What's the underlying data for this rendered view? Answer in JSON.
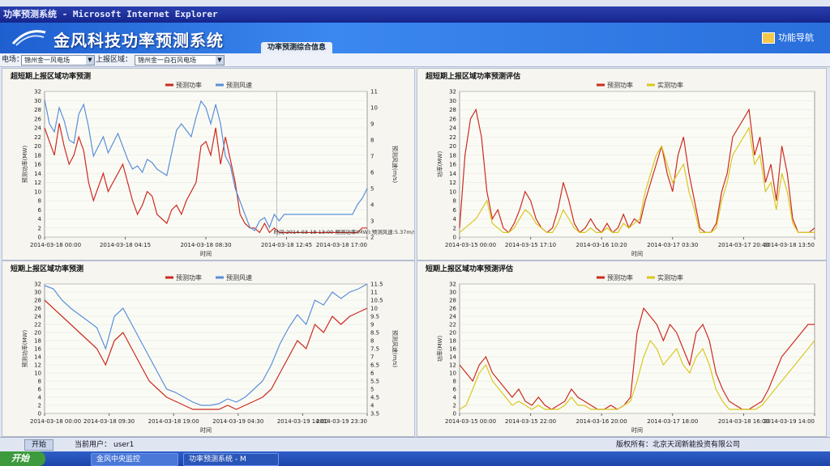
{
  "window": {
    "title": "功率预测系统 - Microsoft Internet Explorer"
  },
  "header": {
    "app_title": "金风科技功率预测系统",
    "active_tab": "功率预测综合信息",
    "nav_button": "功能导航"
  },
  "filters": {
    "farm_label": "电场：",
    "farm_value": "锦州金一风电场",
    "area_label": "上报区域：",
    "area_value": "锦州金一白石风电场"
  },
  "colors": {
    "predicted_power": "#cc2a1e",
    "predicted_wind": "#5a8fd8",
    "actual_power": "#d8c820"
  },
  "status": {
    "start_label": "开始",
    "user_label": "当前用户：",
    "user_value": "user1",
    "copyright": "版权所有：北京天润新能投资有限公司"
  },
  "taskbar": {
    "start": "开始",
    "tasks": [
      "金风中央监控",
      "功率预测系统 - M"
    ]
  },
  "chart_data": [
    {
      "type": "line",
      "title": "超短期上报区域功率预测",
      "xlabel": "时间",
      "ylabel": "预测功率(MW)",
      "y2label": "预测风速(m/s)",
      "x_ticks": [
        "2014-03-18 00:00",
        "2014-03-18 04:15",
        "2014-03-18 08:30",
        "2014-03-18 12:45",
        "2014-03-18 17:00"
      ],
      "ylim": [
        0,
        32
      ],
      "y2lim": [
        2,
        11
      ],
      "y_ticks": [
        0,
        2,
        4,
        6,
        8,
        10,
        12,
        14,
        16,
        18,
        20,
        22,
        24,
        26,
        28,
        30,
        32
      ],
      "y2_ticks": [
        2,
        3,
        4,
        5,
        6,
        7,
        8,
        9,
        10,
        11
      ],
      "legend": [
        "预测功率",
        "预测风速"
      ],
      "tooltip": "时间:2014-03-18 13:00 预测功率(MW):预测风速:5.37m/s",
      "series": [
        {
          "name": "预测功率",
          "axis": "left",
          "values": [
            24,
            21,
            18,
            25,
            20,
            16,
            18,
            22,
            19,
            12,
            8,
            11,
            14,
            10,
            12,
            14,
            16,
            12,
            8,
            5,
            7,
            10,
            9,
            5,
            4,
            3,
            6,
            7,
            5,
            8,
            10,
            12,
            20,
            21,
            18,
            24,
            16,
            22,
            17,
            12,
            5,
            3,
            2,
            2,
            1,
            3,
            1,
            2,
            1,
            1,
            1,
            1,
            1,
            1,
            1,
            1,
            1,
            1,
            1,
            1,
            1,
            1,
            1,
            1,
            1,
            2,
            2
          ]
        },
        {
          "name": "预测风速",
          "axis": "right",
          "values": [
            10.5,
            9.0,
            8.5,
            10.0,
            9.2,
            8.0,
            7.8,
            9.6,
            10.2,
            8.8,
            7.0,
            7.6,
            8.2,
            7.2,
            7.8,
            8.4,
            7.6,
            6.8,
            6.2,
            6.4,
            6.0,
            6.8,
            6.6,
            6.2,
            6.0,
            5.8,
            7.2,
            8.6,
            9.0,
            8.6,
            8.2,
            9.4,
            10.4,
            10.0,
            9.0,
            10.2,
            9.0,
            7.0,
            6.4,
            5.0,
            4.2,
            3.4,
            2.6,
            2.4,
            3.0,
            3.2,
            2.6,
            3.4,
            3.0,
            3.4,
            3.4,
            3.4,
            3.4,
            3.4,
            3.4,
            3.4,
            3.4,
            3.4,
            3.4,
            3.4,
            3.4,
            3.4,
            3.4,
            3.4,
            4.0,
            4.4,
            5.0
          ]
        }
      ]
    },
    {
      "type": "line",
      "title": "超短期上报区域功率预测评估",
      "xlabel": "时间",
      "ylabel": "功率(MW)",
      "x_ticks": [
        "2014-03-15 00:00",
        "2014-03-15 17:10",
        "2014-03-16 10:20",
        "2014-03-17 03:30",
        "2014-03-17 20:40",
        "2014-03-18 13:50"
      ],
      "ylim": [
        0,
        32
      ],
      "y_ticks": [
        0,
        2,
        4,
        6,
        8,
        10,
        12,
        14,
        16,
        18,
        20,
        22,
        24,
        26,
        28,
        30,
        32
      ],
      "legend": [
        "预测功率",
        "实测功率"
      ],
      "series": [
        {
          "name": "预测功率",
          "values": [
            2,
            18,
            26,
            28,
            22,
            10,
            4,
            6,
            2,
            1,
            3,
            6,
            10,
            8,
            4,
            2,
            1,
            2,
            6,
            12,
            8,
            3,
            1,
            2,
            4,
            2,
            1,
            3,
            1,
            2,
            5,
            2,
            4,
            3,
            8,
            12,
            16,
            20,
            14,
            10,
            18,
            22,
            14,
            8,
            2,
            1,
            1,
            3,
            10,
            14,
            22,
            24,
            26,
            28,
            18,
            22,
            12,
            16,
            8,
            20,
            14,
            4,
            1,
            1,
            1,
            2
          ]
        },
        {
          "name": "实测功率",
          "values": [
            1,
            2,
            3,
            4,
            6,
            8,
            3,
            2,
            1,
            1,
            2,
            4,
            6,
            5,
            3,
            2,
            1,
            1,
            3,
            6,
            4,
            2,
            1,
            1,
            2,
            1,
            1,
            2,
            1,
            1,
            3,
            2,
            3,
            4,
            10,
            14,
            18,
            20,
            16,
            12,
            14,
            16,
            10,
            6,
            1,
            1,
            1,
            2,
            8,
            12,
            18,
            20,
            22,
            24,
            16,
            18,
            10,
            12,
            6,
            14,
            10,
            3,
            1,
            1,
            1,
            1
          ]
        }
      ]
    },
    {
      "type": "line",
      "title": "短期上报区域功率预测",
      "xlabel": "时间",
      "ylabel": "预测功率(MW)",
      "y2label": "预测风速(m/s)",
      "x_ticks": [
        "2014-03-18 00:00",
        "2014-03-18 09:30",
        "2014-03-18 19:00",
        "2014-03-19 04:30",
        "2014-03-19 14:00",
        "2014-03-19 23:30"
      ],
      "ylim": [
        0,
        32
      ],
      "y2lim": [
        3.5,
        11.5
      ],
      "y_ticks": [
        0,
        2,
        4,
        6,
        8,
        10,
        12,
        14,
        16,
        18,
        20,
        22,
        24,
        26,
        28,
        30,
        32
      ],
      "y2_ticks": [
        3.5,
        4,
        4.5,
        5,
        5.5,
        6,
        6.5,
        7,
        7.5,
        8,
        8.5,
        9,
        9.5,
        10,
        10.5,
        11,
        11.5
      ],
      "legend": [
        "预测功率",
        "预测风速"
      ],
      "series": [
        {
          "name": "预测功率",
          "axis": "left",
          "values": [
            28,
            26,
            24,
            22,
            20,
            18,
            16,
            12,
            18,
            20,
            16,
            12,
            8,
            6,
            4,
            3,
            2,
            1,
            1,
            1,
            1,
            2,
            1,
            2,
            3,
            4,
            6,
            10,
            14,
            18,
            16,
            22,
            20,
            24,
            22,
            24,
            25,
            26
          ]
        },
        {
          "name": "预测风速",
          "axis": "right",
          "values": [
            11.4,
            11.2,
            10.5,
            10.0,
            9.6,
            9.2,
            8.8,
            7.5,
            9.5,
            10.0,
            9.0,
            8.0,
            7.0,
            6.0,
            5.0,
            4.8,
            4.5,
            4.2,
            4.0,
            4.0,
            4.1,
            4.4,
            4.2,
            4.5,
            5.0,
            5.5,
            6.5,
            7.8,
            8.8,
            9.6,
            9.0,
            10.5,
            10.2,
            11.0,
            10.6,
            11.0,
            11.2,
            11.5
          ]
        }
      ]
    },
    {
      "type": "line",
      "title": "短期上报区域功率预测评估",
      "xlabel": "时间",
      "ylabel": "功率(MW)",
      "x_ticks": [
        "2014-03-15 00:00",
        "2014-03-15 22:00",
        "2014-03-16 20:00",
        "2014-03-17 18:00",
        "2014-03-18 16:00",
        "2014-03-19 14:00"
      ],
      "ylim": [
        0,
        32
      ],
      "y_ticks": [
        0,
        2,
        4,
        6,
        8,
        10,
        12,
        14,
        16,
        18,
        20,
        22,
        24,
        26,
        28,
        30,
        32
      ],
      "legend": [
        "预测功率",
        "实测功率"
      ],
      "series": [
        {
          "name": "预测功率",
          "values": [
            12,
            10,
            8,
            12,
            14,
            10,
            8,
            6,
            4,
            6,
            3,
            2,
            4,
            2,
            1,
            2,
            3,
            6,
            4,
            3,
            2,
            1,
            1,
            2,
            1,
            2,
            4,
            20,
            26,
            24,
            22,
            18,
            22,
            20,
            16,
            12,
            20,
            22,
            18,
            10,
            6,
            3,
            2,
            1,
            1,
            2,
            3,
            6,
            10,
            14,
            16,
            18,
            20,
            22,
            22
          ]
        },
        {
          "name": "实测功率",
          "values": [
            1,
            2,
            6,
            10,
            12,
            8,
            6,
            4,
            2,
            3,
            2,
            1,
            2,
            1,
            1,
            1,
            2,
            4,
            2,
            2,
            1,
            1,
            1,
            1,
            1,
            2,
            3,
            8,
            14,
            18,
            16,
            12,
            14,
            16,
            12,
            10,
            14,
            16,
            12,
            6,
            3,
            1,
            1,
            1,
            1,
            1,
            2,
            4,
            6,
            8,
            10,
            12,
            14,
            16,
            18
          ]
        }
      ]
    }
  ]
}
